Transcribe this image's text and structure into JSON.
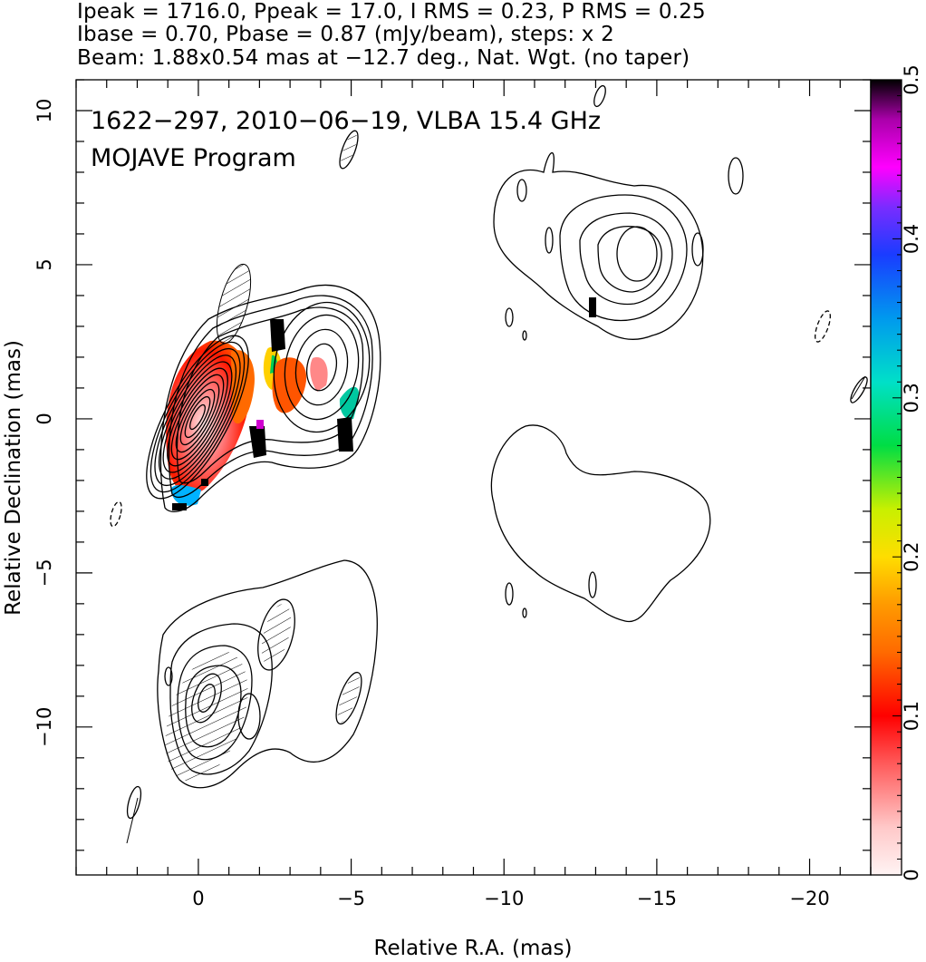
{
  "header": {
    "line1": "Ipeak = 1716.0, Ppeak = 17.0, I RMS = 0.23, P RMS = 0.25",
    "line2": "Ibase = 0.70, Pbase = 0.87 (mJy/beam), steps: x 2",
    "line3": "Beam: 1.88x0.54 mas at −12.7 deg., Nat. Wgt. (no taper)"
  },
  "chart_data": {
    "type": "contour",
    "annotation_line1": "1622−297, 2010−06−19, VLBA 15.4 GHz",
    "annotation_line2": "MOJAVE Program",
    "xlabel": "Relative R.A. (mas)",
    "ylabel": "Relative Declination (mas)",
    "xlim": [
      4,
      -22
    ],
    "ylim": [
      -14.8,
      11
    ],
    "x_ticks": [
      0,
      -5,
      -10,
      -15,
      -20
    ],
    "x_tick_labels": [
      "0",
      "−5",
      "−10",
      "−15",
      "−20"
    ],
    "y_ticks": [
      10,
      5,
      0,
      -5,
      -10
    ],
    "y_tick_labels": [
      "10",
      "5",
      "0",
      "−5",
      "−10"
    ],
    "colorbar": {
      "min": 0,
      "max": 0.5,
      "ticks": [
        0,
        0.1,
        0.2,
        0.3,
        0.4,
        0.5
      ],
      "tick_labels": [
        "0",
        "0.1",
        "0.2",
        "0.3",
        "0.4",
        "0.5"
      ]
    },
    "total_intensity_peak": {
      "ra": 0.0,
      "dec": 0.0
    },
    "jet_component": {
      "ra": -4.0,
      "dec": 1.8
    },
    "beam": {
      "major_mas": 1.88,
      "minor_mas": 0.54,
      "pa_deg": -12.7
    }
  }
}
